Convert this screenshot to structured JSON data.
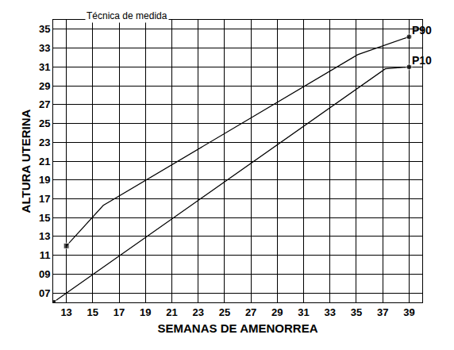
{
  "chart_data": {
    "type": "line",
    "xlabel": "SEMANAS DE AMENORREA",
    "ylabel": "ALTURA UTERINA",
    "annotations": [
      "Técnica de medida"
    ],
    "series": [
      {
        "name": "P90",
        "color": "#000000",
        "x": [
          13,
          15.8,
          35.1,
          39
        ],
        "values": [
          12,
          16.3,
          32.3,
          34.2
        ]
      },
      {
        "name": "P10",
        "color": "#000000",
        "x": [
          12,
          37.2,
          39
        ],
        "values": [
          6,
          30.8,
          31
        ]
      }
    ],
    "xlim": [
      12,
      40
    ],
    "xticks": [
      13,
      15,
      17,
      19,
      21,
      23,
      25,
      27,
      29,
      31,
      33,
      35,
      37,
      39
    ],
    "ylim": [
      6,
      36
    ],
    "yticks": [
      {
        "value": 7,
        "label": "07"
      },
      {
        "value": 9,
        "label": "09"
      },
      11,
      13,
      15,
      17,
      19,
      21,
      23,
      25,
      27,
      29,
      31,
      33,
      35
    ],
    "grid": true
  }
}
